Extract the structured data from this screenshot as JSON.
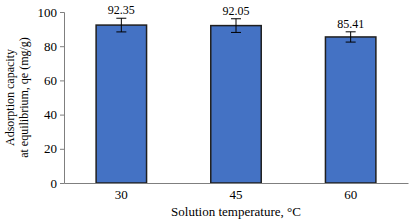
{
  "chart_data": {
    "type": "bar",
    "x_label": "Solution temperature, °C",
    "y_label": "Adsorption capacity at equilibrium, qe (mg/g)",
    "categories": [
      "30",
      "45",
      "60"
    ],
    "values": [
      92.35,
      92.05,
      85.41
    ],
    "errors": [
      4,
      4,
      3
    ],
    "color": "#4472c4",
    "ylim": [
      0,
      100
    ],
    "yticks": [
      0,
      20,
      40,
      60,
      80,
      100
    ],
    "grid": false,
    "data_labels": true
  }
}
